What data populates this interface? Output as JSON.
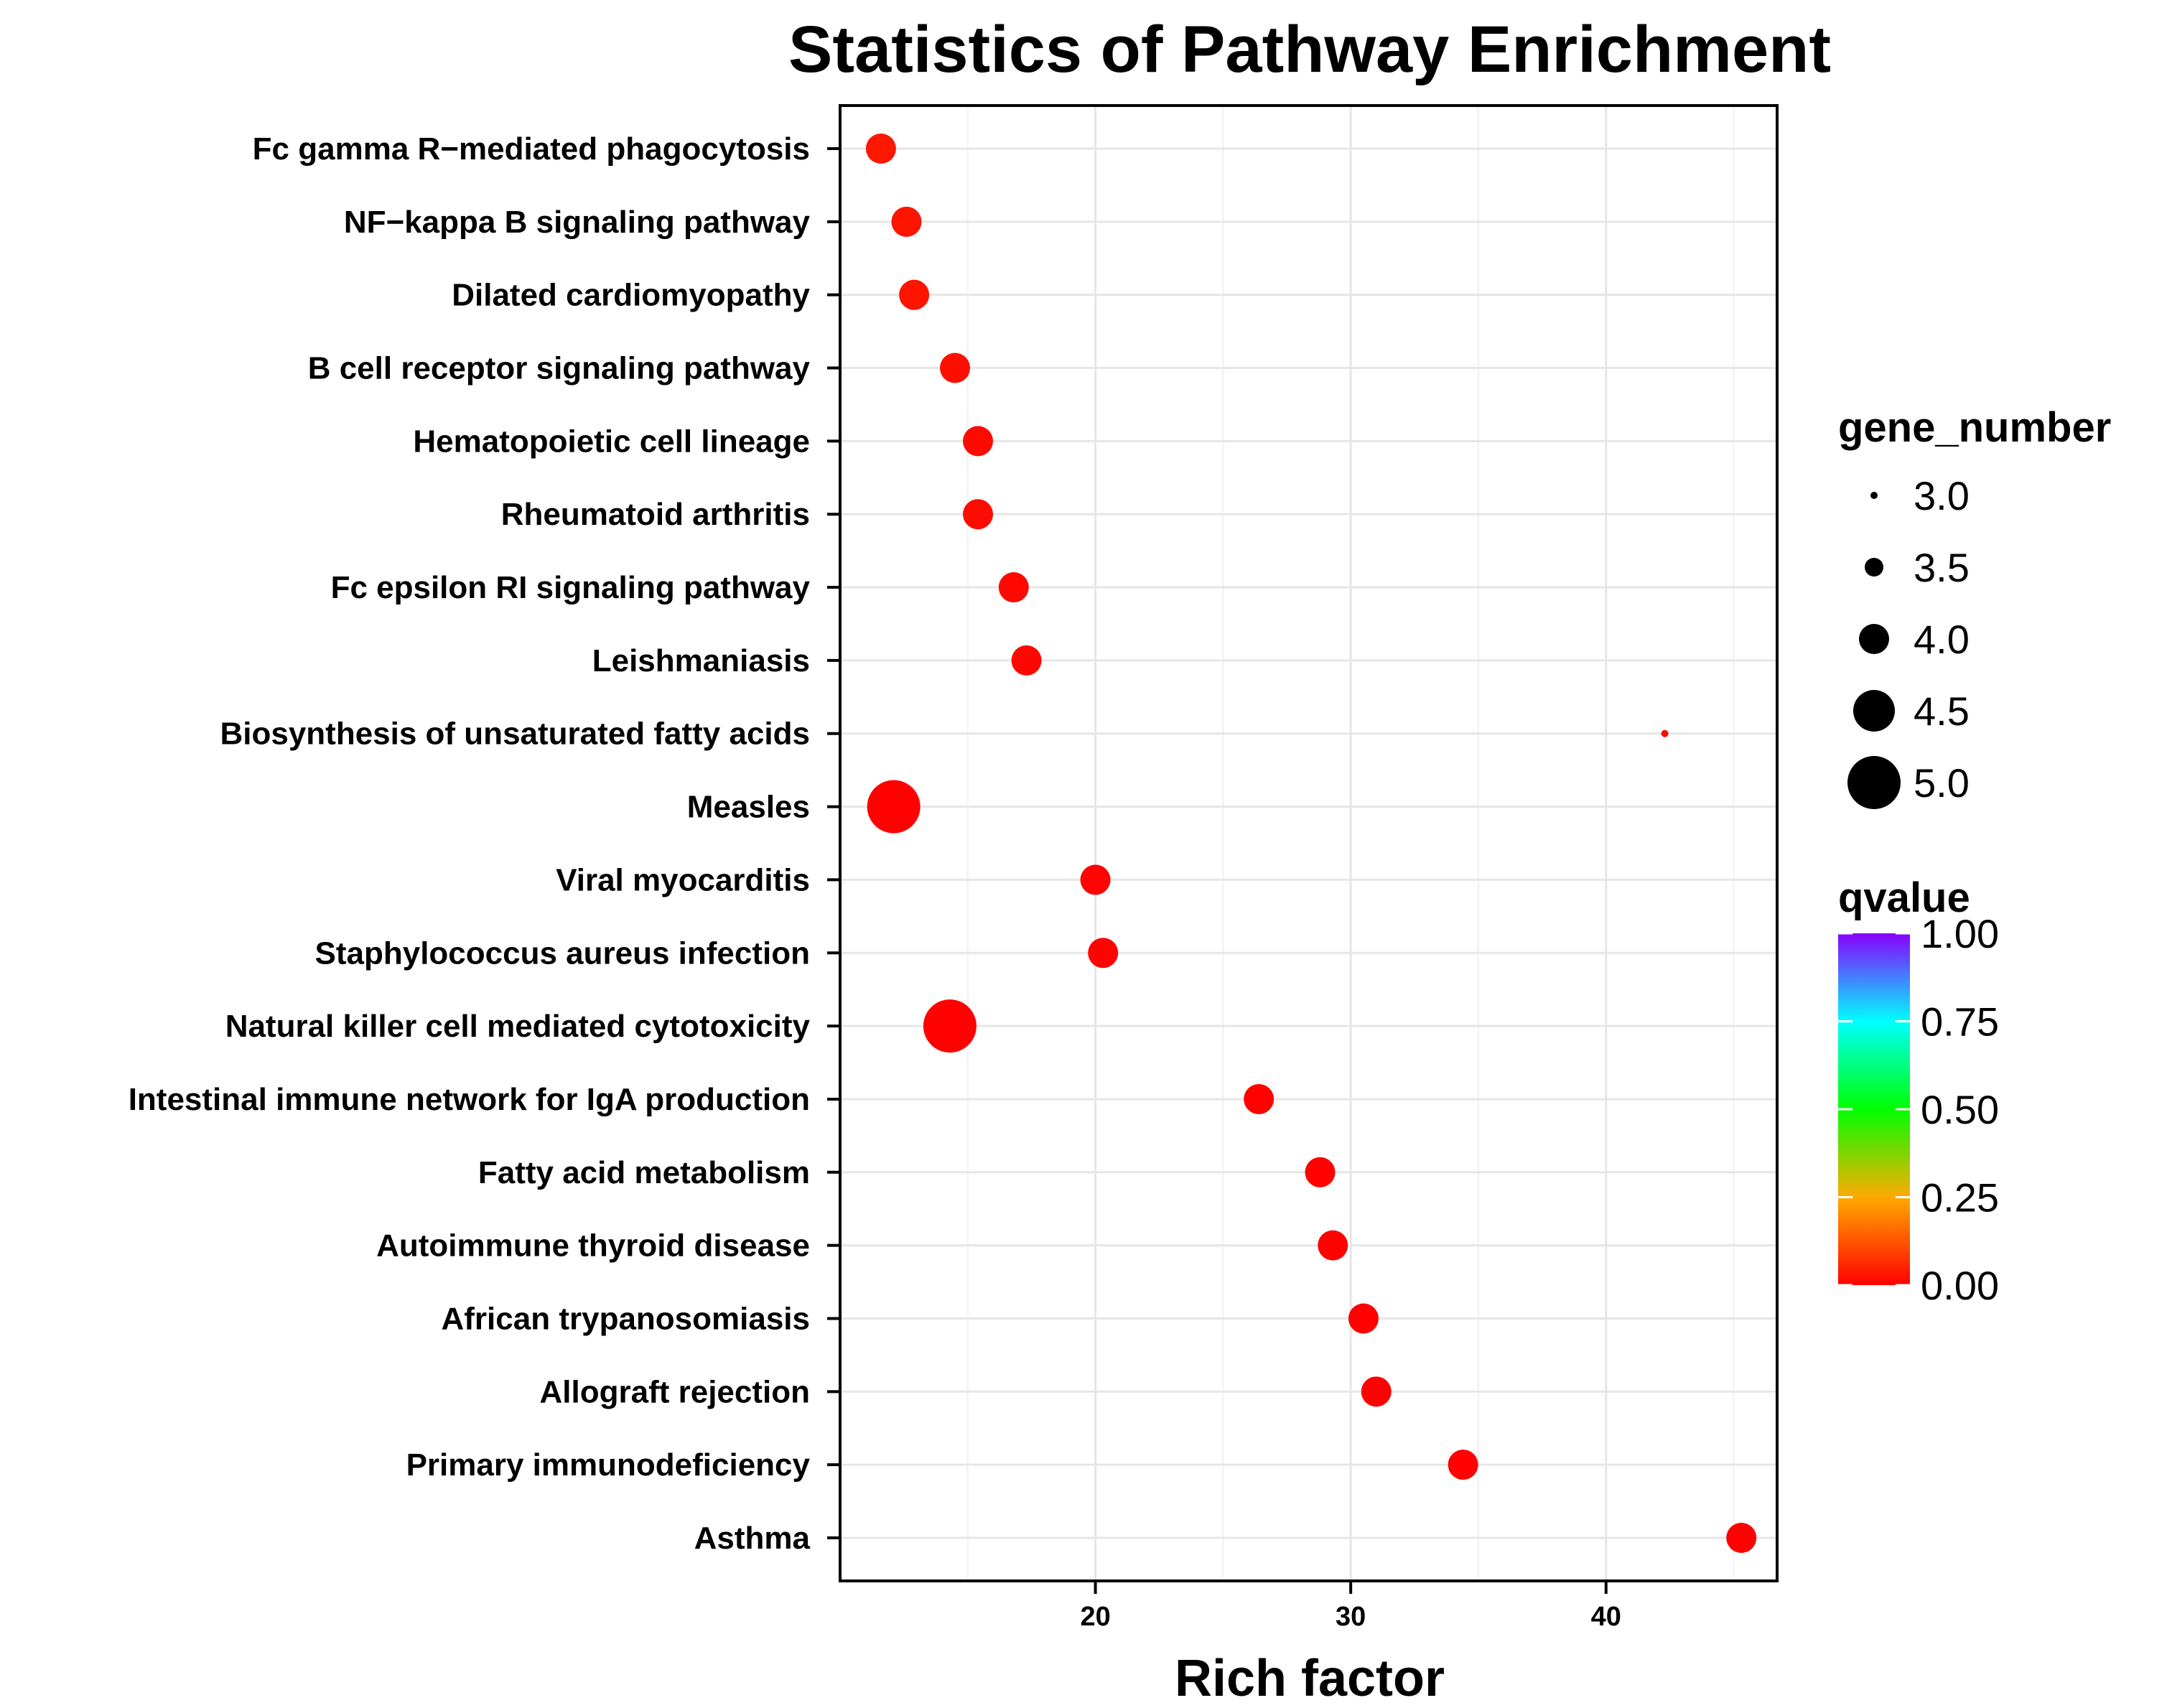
{
  "chart_data": {
    "type": "scatter",
    "title": "Statistics of Pathway Enrichment",
    "xlabel": "Rich factor",
    "ylabel": "",
    "xlim": [
      10.0,
      46.7
    ],
    "x_ticks": [
      20,
      30,
      40
    ],
    "grid": true,
    "categories": [
      "Fc gamma R−mediated phagocytosis",
      "NF−kappa B signaling pathway",
      "Dilated cardiomyopathy",
      "B cell receptor signaling pathway",
      "Hematopoietic cell lineage",
      "Rheumatoid arthritis",
      "Fc epsilon RI signaling pathway",
      "Leishmaniasis",
      "Biosynthesis of unsaturated fatty acids",
      "Measles",
      "Viral myocarditis",
      "Staphylococcus aureus infection",
      "Natural killer cell mediated cytotoxicity",
      "Intestinal immune network for IgA production",
      "Fatty acid metabolism",
      "Autoimmune thyroid disease",
      "African trypanosomiasis",
      "Allograft rejection",
      "Primary immunodeficiency",
      "Asthma"
    ],
    "points": [
      {
        "pathway": "Fc gamma R−mediated phagocytosis",
        "rich_factor": 11.6,
        "gene_number": 4,
        "qvalue": 0.035
      },
      {
        "pathway": "NF−kappa B signaling pathway",
        "rich_factor": 12.6,
        "gene_number": 4,
        "qvalue": 0.03
      },
      {
        "pathway": "Dilated cardiomyopathy",
        "rich_factor": 12.9,
        "gene_number": 4,
        "qvalue": 0.03
      },
      {
        "pathway": "B cell receptor signaling pathway",
        "rich_factor": 14.5,
        "gene_number": 4,
        "qvalue": 0.02
      },
      {
        "pathway": "Hematopoietic cell lineage",
        "rich_factor": 15.4,
        "gene_number": 4,
        "qvalue": 0.015
      },
      {
        "pathway": "Rheumatoid arthritis",
        "rich_factor": 15.4,
        "gene_number": 4,
        "qvalue": 0.015
      },
      {
        "pathway": "Fc epsilon RI signaling pathway",
        "rich_factor": 16.8,
        "gene_number": 4,
        "qvalue": 0.012
      },
      {
        "pathway": "Leishmaniasis",
        "rich_factor": 17.3,
        "gene_number": 4,
        "qvalue": 0.01
      },
      {
        "pathway": "Biosynthesis of unsaturated fatty acids",
        "rich_factor": 42.3,
        "gene_number": 3,
        "qvalue": 0.01
      },
      {
        "pathway": "Measles",
        "rich_factor": 12.1,
        "gene_number": 5,
        "qvalue": 0.002
      },
      {
        "pathway": "Viral myocarditis",
        "rich_factor": 20.0,
        "gene_number": 4,
        "qvalue": 0.005
      },
      {
        "pathway": "Staphylococcus aureus infection",
        "rich_factor": 20.3,
        "gene_number": 4,
        "qvalue": 0.005
      },
      {
        "pathway": "Natural killer cell mediated cytotoxicity",
        "rich_factor": 14.3,
        "gene_number": 5,
        "qvalue": 0.001
      },
      {
        "pathway": "Intestinal immune network for IgA production",
        "rich_factor": 26.4,
        "gene_number": 4,
        "qvalue": 0.003
      },
      {
        "pathway": "Fatty acid metabolism",
        "rich_factor": 28.8,
        "gene_number": 4,
        "qvalue": 0.003
      },
      {
        "pathway": "Autoimmune thyroid disease",
        "rich_factor": 29.3,
        "gene_number": 4,
        "qvalue": 0.003
      },
      {
        "pathway": "African trypanosomiasis",
        "rich_factor": 30.5,
        "gene_number": 4,
        "qvalue": 0.002
      },
      {
        "pathway": "Allograft rejection",
        "rich_factor": 31.0,
        "gene_number": 4,
        "qvalue": 0.002
      },
      {
        "pathway": "Primary immunodeficiency",
        "rich_factor": 34.4,
        "gene_number": 4,
        "qvalue": 0.002
      },
      {
        "pathway": "Asthma",
        "rich_factor": 45.3,
        "gene_number": 4,
        "qvalue": 0.001
      }
    ],
    "legend_size": {
      "title": "gene_number",
      "entries": [
        {
          "label": "3.0",
          "value": 3.0
        },
        {
          "label": "3.5",
          "value": 3.5
        },
        {
          "label": "4.0",
          "value": 4.0
        },
        {
          "label": "4.5",
          "value": 4.5
        },
        {
          "label": "5.0",
          "value": 5.0
        }
      ]
    },
    "legend_color": {
      "title": "qvalue",
      "ticks": [
        {
          "label": "1.00",
          "value": 1.0
        },
        {
          "label": "0.75",
          "value": 0.75
        },
        {
          "label": "0.50",
          "value": 0.5
        },
        {
          "label": "0.25",
          "value": 0.25
        },
        {
          "label": "0.00",
          "value": 0.0
        }
      ],
      "range": [
        0,
        1
      ],
      "colors_low_to_high": [
        "#ff0000",
        "#ffaa00",
        "#00ff00",
        "#00ffff",
        "#8800ff"
      ]
    },
    "legend_placement": "right"
  }
}
